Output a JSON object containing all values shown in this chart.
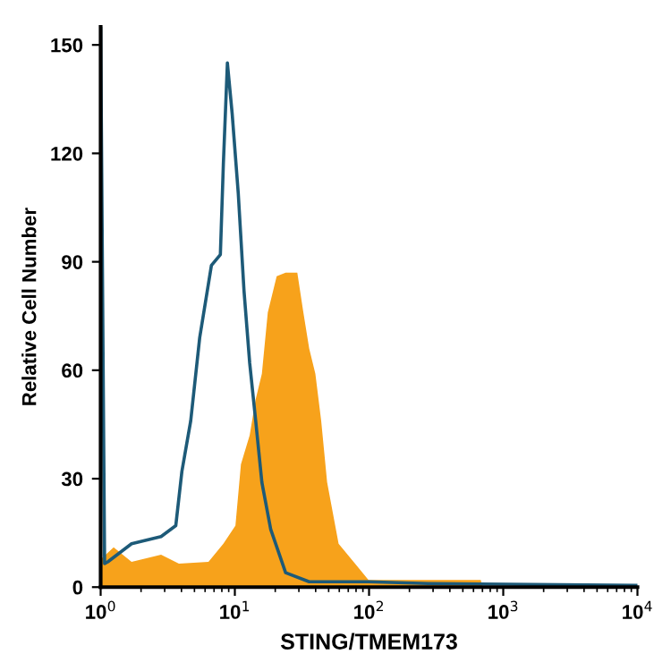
{
  "chart_data": {
    "type": "area",
    "xlabel": "STING/TMEM173",
    "ylabel": "Relative Cell Number",
    "log": "x",
    "grid": false,
    "xlim": [
      1,
      10000
    ],
    "ylim": [
      0,
      155
    ],
    "xticks": [
      {
        "value": 1,
        "label": "10$^{0}$"
      },
      {
        "value": 10,
        "label": "10$^{1}$"
      },
      {
        "value": 100,
        "label": "10$^{2}$"
      },
      {
        "value": 1000,
        "label": "10$^{3}$"
      },
      {
        "value": 10000,
        "label": "10$^{4}$"
      }
    ],
    "yticks": [
      0,
      30,
      60,
      90,
      120,
      150
    ],
    "series": [
      {
        "color": "#f7a21b",
        "x": [
          1.0,
          1.02,
          1.25,
          1.7,
          2.82,
          3.83,
          6.36,
          8.21,
          10.1,
          11.1,
          12.9,
          14.3,
          15.9,
          17.6,
          20.5,
          23.9,
          29.2,
          32.4,
          35.8,
          39.8,
          44,
          48.7,
          59.3,
          80.7,
          99,
          300,
          680,
          700,
          10000
        ],
        "values": [
          86,
          8,
          11,
          7,
          9,
          6.5,
          7,
          12,
          17,
          34,
          42,
          52,
          59,
          76,
          86,
          87,
          87,
          76,
          66,
          59,
          46,
          29,
          12,
          6,
          2,
          2,
          2,
          0,
          0
        ]
      },
      {
        "type": "line",
        "color": "#1d5a78",
        "x": [
          1.0,
          1.07,
          1.13,
          1.7,
          2.82,
          3.63,
          4.03,
          4.69,
          5.47,
          6.69,
          7.8,
          8.21,
          8.8,
          9.55,
          10.6,
          11.7,
          12.9,
          14.3,
          15.9,
          18.5,
          23.9,
          35.8,
          99,
          275,
          10000
        ],
        "values": [
          155,
          6.5,
          7,
          12,
          14,
          17,
          32,
          46,
          69,
          89,
          92,
          117,
          145,
          131,
          109,
          82,
          62,
          46,
          29,
          16,
          4,
          1.5,
          1.5,
          1,
          0.5
        ]
      }
    ]
  }
}
